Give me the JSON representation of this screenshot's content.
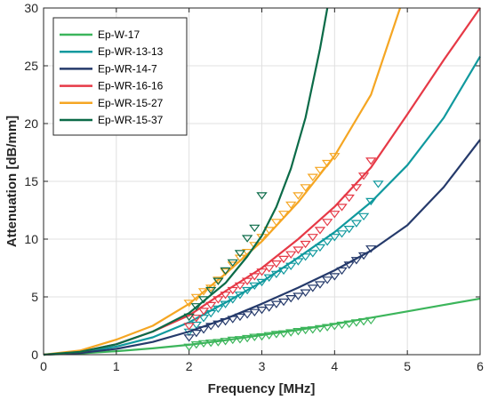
{
  "chart_data": {
    "type": "line",
    "xlabel": "Frequency [MHz]",
    "ylabel": "Attenuation [dB/mm]",
    "xlim": [
      0,
      6
    ],
    "ylim": [
      0,
      30
    ],
    "xticks": [
      "0",
      "1",
      "2",
      "3",
      "4",
      "5",
      "6"
    ],
    "yticks": [
      "0",
      "5",
      "10",
      "15",
      "20",
      "25",
      "30"
    ],
    "grid": true,
    "legend_position": "top-left",
    "series": [
      {
        "name": "Ep-W-17",
        "color": "#3cb55b",
        "fit_x": [
          0,
          0.5,
          1,
          1.5,
          2,
          2.5,
          3,
          3.5,
          4,
          4.5,
          5,
          5.5,
          6
        ],
        "fit_y": [
          0,
          0.1,
          0.3,
          0.55,
          0.85,
          1.25,
          1.7,
          2.15,
          2.65,
          3.2,
          3.75,
          4.3,
          4.85
        ],
        "markers_x": [
          2.0,
          2.1,
          2.2,
          2.3,
          2.4,
          2.5,
          2.6,
          2.7,
          2.8,
          2.9,
          3.0,
          3.1,
          3.2,
          3.3,
          3.4,
          3.5,
          3.6,
          3.7,
          3.8,
          3.9,
          4.0,
          4.1,
          4.2,
          4.3,
          4.4,
          4.5
        ],
        "markers_y": [
          0.7,
          0.9,
          1.0,
          1.05,
          1.1,
          1.2,
          1.3,
          1.35,
          1.45,
          1.55,
          1.6,
          1.7,
          1.8,
          1.85,
          1.95,
          2.05,
          2.15,
          2.2,
          2.3,
          2.4,
          2.5,
          2.6,
          2.7,
          2.8,
          2.9,
          3.0
        ]
      },
      {
        "name": "Ep-WR-13-13",
        "color": "#10999e",
        "fit_x": [
          0,
          0.5,
          1,
          1.5,
          2,
          2.5,
          3,
          3.5,
          4,
          4.5,
          5,
          5.5,
          6
        ],
        "fit_y": [
          0,
          0.2,
          0.7,
          1.5,
          2.8,
          4.5,
          6.3,
          8.4,
          10.6,
          13.2,
          16.4,
          20.5,
          25.8
        ],
        "markers_x": [
          2.0,
          2.1,
          2.2,
          2.3,
          2.4,
          2.5,
          2.6,
          2.7,
          2.8,
          2.9,
          3.0,
          3.1,
          3.2,
          3.3,
          3.4,
          3.5,
          3.6,
          3.7,
          3.8,
          3.9,
          4.0,
          4.1,
          4.2,
          4.3,
          4.4,
          4.5,
          4.6
        ],
        "markers_y": [
          2.0,
          2.6,
          3.2,
          3.6,
          4.0,
          4.4,
          4.8,
          5.2,
          5.6,
          6.0,
          6.3,
          6.7,
          7.0,
          7.3,
          7.7,
          8.1,
          8.5,
          8.8,
          9.3,
          9.8,
          10.2,
          10.5,
          10.9,
          11.4,
          12.0,
          13.3,
          14.8
        ]
      },
      {
        "name": "Ep-WR-14-7",
        "color": "#253a6b",
        "fit_x": [
          0,
          0.5,
          1,
          1.5,
          2,
          2.5,
          3,
          3.5,
          4,
          4.5,
          5,
          5.5,
          6
        ],
        "fit_y": [
          0,
          0.15,
          0.5,
          1.1,
          2.0,
          3.1,
          4.4,
          5.8,
          7.3,
          9.0,
          11.2,
          14.5,
          18.6
        ],
        "markers_x": [
          2.0,
          2.1,
          2.2,
          2.3,
          2.4,
          2.5,
          2.6,
          2.7,
          2.8,
          2.9,
          3.0,
          3.1,
          3.2,
          3.3,
          3.4,
          3.5,
          3.6,
          3.7,
          3.8,
          3.9,
          4.0,
          4.1,
          4.2,
          4.3,
          4.4,
          4.5
        ],
        "markers_y": [
          1.5,
          1.9,
          2.2,
          2.5,
          2.7,
          2.9,
          3.1,
          3.3,
          3.5,
          3.7,
          3.9,
          4.1,
          4.4,
          4.6,
          4.9,
          5.1,
          5.4,
          5.8,
          6.1,
          6.5,
          6.8,
          7.3,
          7.8,
          8.2,
          8.6,
          9.2
        ]
      },
      {
        "name": "Ep-WR-16-16",
        "color": "#e63946",
        "fit_x": [
          0,
          0.5,
          1,
          1.5,
          2,
          2.5,
          3,
          3.5,
          4,
          4.5,
          5,
          5.5,
          6
        ],
        "fit_y": [
          0,
          0.25,
          0.9,
          2.0,
          3.4,
          5.5,
          7.5,
          10.0,
          12.8,
          16.2,
          20.8,
          25.5,
          30.0
        ],
        "markers_x": [
          2.0,
          2.1,
          2.2,
          2.3,
          2.4,
          2.5,
          2.6,
          2.7,
          2.8,
          2.9,
          3.0,
          3.1,
          3.2,
          3.3,
          3.4,
          3.5,
          3.6,
          3.7,
          3.8,
          3.9,
          4.0,
          4.1,
          4.2,
          4.3,
          4.4,
          4.5
        ],
        "markers_y": [
          2.5,
          3.2,
          3.8,
          4.3,
          4.8,
          5.2,
          5.6,
          6.0,
          6.4,
          6.8,
          7.2,
          7.5,
          7.9,
          8.3,
          8.7,
          9.1,
          9.6,
          10.2,
          10.8,
          11.5,
          12.2,
          12.8,
          13.6,
          14.5,
          15.5,
          16.8
        ]
      },
      {
        "name": "Ep-WR-15-27",
        "color": "#f5a623",
        "fit_x": [
          0,
          0.5,
          1,
          1.5,
          2,
          2.5,
          3,
          3.5,
          4,
          4.5,
          4.9
        ],
        "fit_y": [
          0,
          0.35,
          1.3,
          2.5,
          4.4,
          7.0,
          9.8,
          13.2,
          17.2,
          22.5,
          30.0
        ],
        "markers_x": [
          2.0,
          2.1,
          2.2,
          2.3,
          2.4,
          2.5,
          2.6,
          2.7,
          2.8,
          2.9,
          3.0,
          3.1,
          3.2,
          3.3,
          3.4,
          3.5,
          3.6,
          3.7,
          3.8,
          3.9,
          4.0
        ],
        "markers_y": [
          4.5,
          5.0,
          5.5,
          5.8,
          6.5,
          7.2,
          7.8,
          8.4,
          8.9,
          9.5,
          10.2,
          10.8,
          11.5,
          12.2,
          13.0,
          13.8,
          14.5,
          15.4,
          16.0,
          16.6,
          17.2
        ]
      },
      {
        "name": "Ep-WR-15-37",
        "color": "#0b6b48",
        "fit_x": [
          0,
          0.5,
          1,
          1.5,
          2,
          2.5,
          2.8,
          3.0,
          3.2,
          3.4,
          3.6,
          3.8,
          3.9
        ],
        "fit_y": [
          0,
          0.25,
          0.9,
          2.0,
          3.6,
          6.2,
          8.5,
          10.3,
          12.8,
          16.1,
          20.5,
          26.5,
          30.0
        ],
        "markers_x": [
          2.0,
          2.1,
          2.2,
          2.3,
          2.4,
          2.5,
          2.6,
          2.7,
          2.8,
          2.9,
          3.0
        ],
        "markers_y": [
          3.3,
          4.2,
          4.8,
          5.6,
          6.4,
          7.3,
          8.0,
          8.8,
          10.1,
          11.0,
          13.8
        ]
      }
    ]
  }
}
